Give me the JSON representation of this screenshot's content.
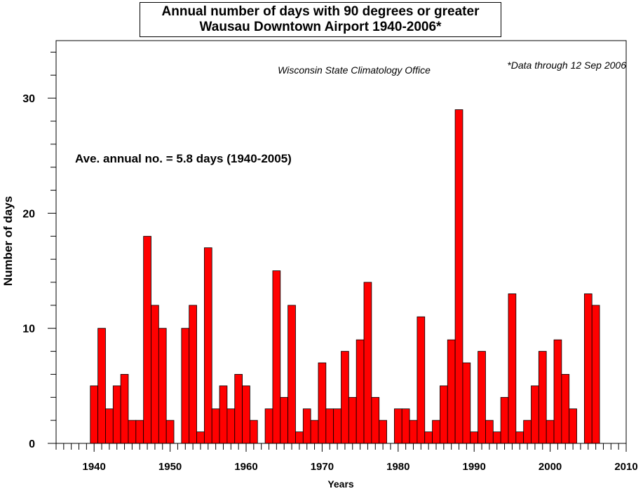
{
  "chart_data": {
    "type": "bar",
    "title": [
      "Annual number of days with 90 degrees or greater",
      "Wausau Downtown Airport 1940-2006*"
    ],
    "subtitle": "Wisconsin State Climatology Office",
    "footnote": "*Data through 12 Sep 2006",
    "annotation": "Ave. annual no. = 5.8 days (1940-2005)",
    "xlabel": "Years",
    "ylabel": "Number of days",
    "xlim": [
      1935,
      2010
    ],
    "ylim": [
      0,
      35
    ],
    "xticks": [
      1940,
      1950,
      1960,
      1970,
      1980,
      1990,
      2000,
      2010
    ],
    "yticks": [
      0,
      10,
      20,
      30
    ],
    "bar_color": "#ff0000",
    "x": [
      1940,
      1941,
      1942,
      1943,
      1944,
      1945,
      1946,
      1947,
      1948,
      1949,
      1950,
      1951,
      1952,
      1953,
      1954,
      1955,
      1956,
      1957,
      1958,
      1959,
      1960,
      1961,
      1962,
      1963,
      1964,
      1965,
      1966,
      1967,
      1968,
      1969,
      1970,
      1971,
      1972,
      1973,
      1974,
      1975,
      1976,
      1977,
      1978,
      1979,
      1980,
      1981,
      1982,
      1983,
      1984,
      1985,
      1986,
      1987,
      1988,
      1989,
      1990,
      1991,
      1992,
      1993,
      1994,
      1995,
      1996,
      1997,
      1998,
      1999,
      2000,
      2001,
      2002,
      2003,
      2004,
      2005,
      2006
    ],
    "values": [
      5,
      10,
      3,
      5,
      6,
      2,
      2,
      18,
      12,
      10,
      2,
      0,
      10,
      12,
      1,
      17,
      3,
      5,
      3,
      6,
      5,
      2,
      0,
      3,
      15,
      4,
      12,
      1,
      3,
      2,
      7,
      3,
      3,
      8,
      4,
      9,
      14,
      4,
      2,
      0,
      3,
      3,
      2,
      11,
      1,
      2,
      5,
      9,
      29,
      7,
      1,
      8,
      2,
      1,
      4,
      13,
      1,
      2,
      5,
      8,
      2,
      9,
      6,
      3,
      0,
      13,
      12
    ]
  }
}
